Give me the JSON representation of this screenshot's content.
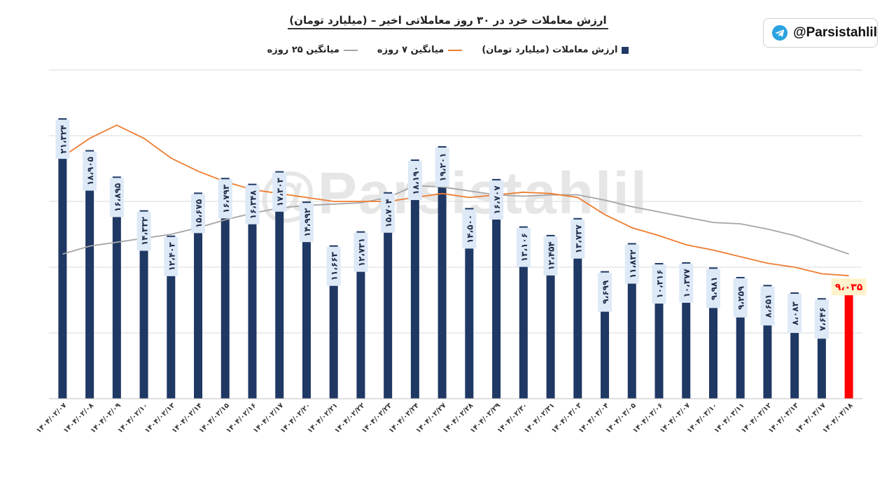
{
  "title": "ارزش معاملات خرد در ۳۰ روز معاملاتی اخیر – (میلیارد تومان)",
  "badge": {
    "handle": "@Parsistahlil",
    "icon": "telegram-icon"
  },
  "watermark": "@Parsistahlil",
  "colors": {
    "bar": "#1f3864",
    "last_bar": "#ff0000",
    "ma7": "#ed7d31",
    "ma25": "#a5a5a5",
    "label_box": "#dde9f7",
    "last_label_box": "#fff2cc",
    "last_label_text": "#ff0000"
  },
  "chart_data": {
    "type": "bar",
    "ylim": [
      0,
      25000
    ],
    "grid": true,
    "legend_position": "top-center",
    "categories": [
      "۱۴۰۴/۰۲/۰۷",
      "۱۴۰۴/۰۲/۰۸",
      "۱۴۰۴/۰۲/۰۹",
      "۱۴۰۴/۰۲/۱۰",
      "۱۴۰۴/۰۲/۱۳",
      "۱۴۰۴/۰۲/۱۴",
      "۱۴۰۴/۰۲/۱۵",
      "۱۴۰۴/۰۲/۱۶",
      "۱۴۰۴/۰۲/۱۷",
      "۱۴۰۴/۰۲/۲۰",
      "۱۴۰۴/۰۲/۲۱",
      "۱۴۰۴/۰۲/۲۲",
      "۱۴۰۴/۰۲/۲۳",
      "۱۴۰۴/۰۲/۲۴",
      "۱۴۰۴/۰۲/۲۷",
      "۱۴۰۴/۰۲/۲۸",
      "۱۴۰۴/۰۲/۲۹",
      "۱۴۰۴/۰۲/۳۰",
      "۱۴۰۴/۰۲/۳۱",
      "۱۴۰۴/۰۳/۰۳",
      "۱۴۰۴/۰۳/۰۴",
      "۱۴۰۴/۰۳/۰۵",
      "۱۴۰۴/۰۳/۰۶",
      "۱۴۰۴/۰۳/۰۷",
      "۱۴۰۴/۰۳/۱۰",
      "۱۴۰۴/۰۳/۱۱",
      "۱۴۰۴/۰۳/۱۲",
      "۱۴۰۴/۰۳/۱۳",
      "۱۴۰۴/۰۳/۱۷",
      "۱۴۰۴/۰۳/۱۸"
    ],
    "series": [
      {
        "name": "ارزش معاملات (میلیارد تومان)",
        "values": [
          21324,
          18905,
          16895,
          14332,
          12403,
          15675,
          16793,
          16348,
          17303,
          14992,
          11663,
          12731,
          15704,
          18190,
          19201,
          14500,
          16707,
          13106,
          12454,
          13737,
          9699,
          11832,
          10316,
          10377,
          9981,
          9259,
          8651,
          8083,
          7646,
          9035
        ],
        "labels": [
          "۲۱،۳۲۴",
          "۱۸،۹۰۵",
          "۱۶،۸۹۵",
          "۱۴،۳۳۲",
          "۱۲،۴۰۳",
          "۱۵،۶۷۵",
          "۱۶،۷۹۳",
          "۱۶،۳۴۸",
          "۱۷،۳۰۳",
          "۱۴،۹۹۲",
          "۱۱،۶۶۳",
          "۱۲،۷۳۱",
          "۱۵،۷۰۴",
          "۱۸،۱۹۰",
          "۱۹،۲۰۱",
          "۱۴،۵۰۰",
          "۱۶،۷۰۷",
          "۱۳،۱۰۶",
          "۱۲،۴۵۴",
          "۱۳،۷۳۷",
          "۹،۶۹۹",
          "۱۱،۸۳۲",
          "۱۰،۳۱۶",
          "۱۰،۳۷۷",
          "۹،۹۸۱",
          "۹،۲۵۹",
          "۸،۶۵۱",
          "۸،۰۸۳",
          "۷،۶۴۶",
          "۹،۰۳۵"
        ]
      },
      {
        "name": "میانگین ۷ روزه",
        "type": "line",
        "values": [
          18400,
          19800,
          20800,
          19800,
          18300,
          17300,
          16500,
          15900,
          15600,
          15300,
          15000,
          15000,
          15000,
          15300,
          15600,
          15300,
          15500,
          15700,
          15600,
          15300,
          14000,
          13000,
          12400,
          11700,
          11300,
          10800,
          10300,
          10000,
          9500,
          9350
        ]
      },
      {
        "name": "میانگین ۲۵ روزه",
        "type": "line",
        "values": [
          11000,
          11600,
          11900,
          12200,
          12500,
          13000,
          13600,
          14100,
          14500,
          14700,
          14800,
          14900,
          15300,
          16200,
          16100,
          15800,
          15500,
          15400,
          15500,
          15500,
          15100,
          14600,
          14200,
          13800,
          13400,
          13300,
          12900,
          12400,
          11700,
          11000
        ]
      }
    ]
  }
}
